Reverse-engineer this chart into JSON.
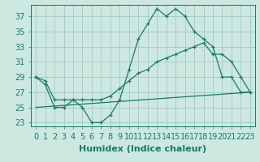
{
  "xlabel": "Humidex (Indice chaleur)",
  "background_color": "#cce8e0",
  "grid_color": "#aacccc",
  "line_color": "#1a7a6a",
  "xlim": [
    -0.5,
    23.5
  ],
  "ylim": [
    22.5,
    38.5
  ],
  "xticks": [
    0,
    1,
    2,
    3,
    4,
    5,
    6,
    7,
    8,
    9,
    10,
    11,
    12,
    13,
    14,
    15,
    16,
    17,
    18,
    19,
    20,
    21,
    22,
    23
  ],
  "yticks": [
    23,
    25,
    27,
    29,
    31,
    33,
    35,
    37
  ],
  "line1_x": [
    0,
    1,
    2,
    3,
    4,
    5,
    6,
    7,
    8,
    9,
    10,
    11,
    12,
    13,
    14,
    15,
    16,
    17,
    18,
    19,
    20,
    21,
    22,
    23
  ],
  "line1_y": [
    29,
    28,
    25,
    25,
    26,
    25,
    23,
    23,
    24,
    26,
    30,
    34,
    36,
    38,
    37,
    38,
    37,
    35,
    34,
    33,
    29,
    29,
    27,
    27
  ],
  "line2_x": [
    0,
    1,
    2,
    3,
    4,
    5,
    6,
    7,
    8,
    9,
    10,
    11,
    12,
    13,
    14,
    15,
    16,
    17,
    18,
    19,
    20,
    21,
    22,
    23
  ],
  "line2_y": [
    29,
    28.5,
    26,
    26,
    26,
    26,
    26,
    26,
    26.5,
    27.5,
    28.5,
    29.5,
    30,
    31,
    31.5,
    32,
    32.5,
    33,
    33.5,
    32,
    32,
    31,
    29,
    27
  ],
  "line3_x": [
    0,
    23
  ],
  "line3_y": [
    25.0,
    27.0
  ],
  "fontsize_xlabel": 8,
  "fontsize_ticks": 7
}
